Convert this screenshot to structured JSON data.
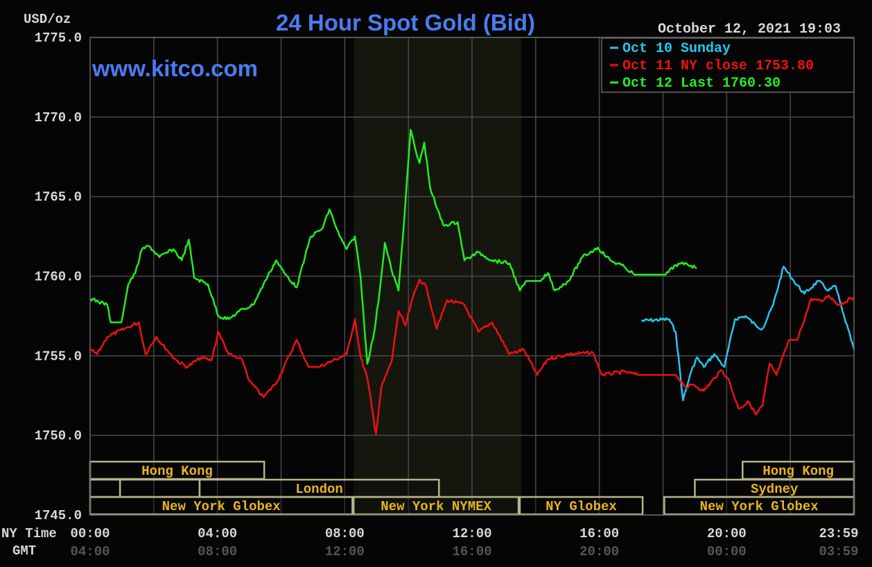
{
  "chart_data": {
    "type": "line",
    "title": "24 Hour Spot Gold (Bid)",
    "watermark": "www.kitco.com",
    "timestamp": "October 12, 2021 19:03",
    "ylabel": "USD/oz",
    "ylim": [
      1745,
      1775
    ],
    "yticks": [
      "1775.0",
      "1770.0",
      "1765.0",
      "1760.0",
      "1755.0",
      "1750.0",
      "1745.0"
    ],
    "ytick_values": [
      1775,
      1770,
      1765,
      1760,
      1755,
      1750,
      1745
    ],
    "xlim_hours": [
      0,
      24
    ],
    "x_row_labels": {
      "ny": "NY Time",
      "gmt": "GMT"
    },
    "xticks": [
      {
        "hour": 0,
        "ny": "00:00",
        "gmt": "04:00"
      },
      {
        "hour": 4,
        "ny": "04:00",
        "gmt": "08:00"
      },
      {
        "hour": 8,
        "ny": "08:00",
        "gmt": "12:00"
      },
      {
        "hour": 12,
        "ny": "12:00",
        "gmt": "16:00"
      },
      {
        "hour": 16,
        "ny": "16:00",
        "gmt": "20:00"
      },
      {
        "hour": 20,
        "ny": "20:00",
        "gmt": "00:00"
      },
      {
        "hour": 24,
        "ny": "23:59",
        "gmt": "03:59"
      }
    ],
    "grid": true,
    "legend_position": "top-right",
    "shaded_hours": [
      8.28,
      13.55
    ],
    "series": [
      {
        "name": "Oct 10 Sunday",
        "color": "#22c8f0",
        "points": [
          [
            17.32,
            1757.2
          ],
          [
            18.19,
            1757.3
          ],
          [
            18.4,
            1756.5
          ],
          [
            18.63,
            1752.2
          ],
          [
            18.85,
            1753.8
          ],
          [
            19.06,
            1754.9
          ],
          [
            19.28,
            1754.3
          ],
          [
            19.61,
            1755.1
          ],
          [
            19.93,
            1754.3
          ],
          [
            20.26,
            1757.3
          ],
          [
            20.59,
            1757.5
          ],
          [
            20.92,
            1756.9
          ],
          [
            21.13,
            1756.7
          ],
          [
            21.46,
            1758.2
          ],
          [
            21.79,
            1760.6
          ],
          [
            22.11,
            1759.7
          ],
          [
            22.44,
            1758.9
          ],
          [
            22.88,
            1759.7
          ],
          [
            23.2,
            1759.1
          ],
          [
            23.42,
            1759.4
          ],
          [
            23.64,
            1757.8
          ],
          [
            24,
            1755.4
          ]
        ]
      },
      {
        "name": "Oct 11 NY close 1753.80",
        "color": "#f01010",
        "points": [
          [
            0,
            1755.4
          ],
          [
            0.22,
            1755.1
          ],
          [
            0.54,
            1756.2
          ],
          [
            1.09,
            1756.7
          ],
          [
            1.53,
            1757.1
          ],
          [
            1.74,
            1755.1
          ],
          [
            2.07,
            1756.2
          ],
          [
            2.4,
            1755.4
          ],
          [
            2.72,
            1754.7
          ],
          [
            3.05,
            1754.3
          ],
          [
            3.49,
            1754.9
          ],
          [
            3.81,
            1754.7
          ],
          [
            4.03,
            1756.5
          ],
          [
            4.36,
            1755.1
          ],
          [
            4.79,
            1754.7
          ],
          [
            5.01,
            1753.4
          ],
          [
            5.45,
            1752.4
          ],
          [
            5.88,
            1753.4
          ],
          [
            6.49,
            1756.0
          ],
          [
            6.86,
            1754.3
          ],
          [
            7.19,
            1754.3
          ],
          [
            7.63,
            1754.7
          ],
          [
            8.06,
            1755.1
          ],
          [
            8.32,
            1757.3
          ],
          [
            8.5,
            1754.9
          ],
          [
            8.71,
            1753.6
          ],
          [
            8.98,
            1750.1
          ],
          [
            9.15,
            1753.0
          ],
          [
            9.48,
            1754.7
          ],
          [
            9.69,
            1757.8
          ],
          [
            9.91,
            1756.9
          ],
          [
            10.13,
            1758.6
          ],
          [
            10.35,
            1759.8
          ],
          [
            10.57,
            1759.3
          ],
          [
            10.89,
            1756.7
          ],
          [
            11.22,
            1758.5
          ],
          [
            11.76,
            1758.2
          ],
          [
            12.2,
            1756.5
          ],
          [
            12.63,
            1757.1
          ],
          [
            13.18,
            1755.1
          ],
          [
            13.62,
            1755.4
          ],
          [
            14.05,
            1753.8
          ],
          [
            14.38,
            1754.8
          ],
          [
            15.03,
            1755.1
          ],
          [
            15.8,
            1755.2
          ],
          [
            16.08,
            1753.8
          ],
          [
            16.78,
            1754.0
          ],
          [
            17.2,
            1753.8
          ],
          [
            18.4,
            1753.8
          ],
          [
            18.74,
            1753.0
          ],
          [
            18.95,
            1753.2
          ],
          [
            19.28,
            1752.8
          ],
          [
            19.83,
            1754.1
          ],
          [
            20.04,
            1753.6
          ],
          [
            20.37,
            1751.7
          ],
          [
            20.7,
            1752.1
          ],
          [
            20.92,
            1751.3
          ],
          [
            21.13,
            1751.9
          ],
          [
            21.35,
            1754.5
          ],
          [
            21.57,
            1753.8
          ],
          [
            21.96,
            1756.0
          ],
          [
            22.22,
            1756.0
          ],
          [
            22.66,
            1758.6
          ],
          [
            22.98,
            1758.4
          ],
          [
            23.2,
            1758.8
          ],
          [
            23.53,
            1758.2
          ],
          [
            24,
            1758.7
          ]
        ]
      },
      {
        "name": "Oct 12 Last 1760.30",
        "color": "#22ee22",
        "points": [
          [
            0,
            1758.6
          ],
          [
            0.54,
            1758.2
          ],
          [
            0.65,
            1757.1
          ],
          [
            0.98,
            1757.1
          ],
          [
            1.2,
            1759.5
          ],
          [
            1.42,
            1760.2
          ],
          [
            1.63,
            1761.7
          ],
          [
            1.85,
            1761.9
          ],
          [
            2.18,
            1761.2
          ],
          [
            2.61,
            1761.7
          ],
          [
            2.88,
            1761.0
          ],
          [
            3.1,
            1762.3
          ],
          [
            3.27,
            1759.9
          ],
          [
            3.7,
            1759.5
          ],
          [
            4.03,
            1757.5
          ],
          [
            4.36,
            1757.3
          ],
          [
            4.68,
            1757.8
          ],
          [
            5.12,
            1758.2
          ],
          [
            5.45,
            1759.5
          ],
          [
            5.84,
            1761.0
          ],
          [
            6.1,
            1760.2
          ],
          [
            6.49,
            1759.3
          ],
          [
            6.75,
            1761.2
          ],
          [
            6.93,
            1762.5
          ],
          [
            7.3,
            1763.0
          ],
          [
            7.52,
            1764.2
          ],
          [
            7.84,
            1762.5
          ],
          [
            8.06,
            1761.7
          ],
          [
            8.32,
            1762.5
          ],
          [
            8.5,
            1759.9
          ],
          [
            8.71,
            1754.5
          ],
          [
            8.93,
            1756.5
          ],
          [
            9.1,
            1759.1
          ],
          [
            9.26,
            1762.1
          ],
          [
            9.47,
            1760.4
          ],
          [
            9.69,
            1759.1
          ],
          [
            9.91,
            1764.7
          ],
          [
            10.07,
            1769.2
          ],
          [
            10.24,
            1767.8
          ],
          [
            10.35,
            1767.1
          ],
          [
            10.5,
            1768.4
          ],
          [
            10.68,
            1765.6
          ],
          [
            10.89,
            1764.3
          ],
          [
            11.1,
            1763.2
          ],
          [
            11.55,
            1763.4
          ],
          [
            11.76,
            1761.0
          ],
          [
            12.2,
            1761.5
          ],
          [
            12.63,
            1761.0
          ],
          [
            13.18,
            1760.8
          ],
          [
            13.5,
            1759.1
          ],
          [
            13.73,
            1759.7
          ],
          [
            14.16,
            1759.7
          ],
          [
            14.38,
            1760.2
          ],
          [
            14.6,
            1759.1
          ],
          [
            15.03,
            1759.7
          ],
          [
            15.47,
            1761.2
          ],
          [
            15.95,
            1761.8
          ],
          [
            16.34,
            1761.0
          ],
          [
            16.78,
            1760.6
          ],
          [
            17.1,
            1760.1
          ],
          [
            18.08,
            1760.1
          ],
          [
            18.4,
            1760.7
          ],
          [
            18.74,
            1760.8
          ],
          [
            19.06,
            1760.5
          ]
        ]
      }
    ],
    "sessions": [
      {
        "label": "Hong Kong",
        "row": 0,
        "start": 0,
        "end": 5.47,
        "show": true
      },
      {
        "label": "Hong Kong",
        "row": 0,
        "start": 20.5,
        "end": 24,
        "show": true
      },
      {
        "label": "",
        "row": 1,
        "start": 0,
        "end": 0.94,
        "show": false
      },
      {
        "label": "",
        "row": 1,
        "start": 0.94,
        "end": 3.44,
        "show": false
      },
      {
        "label": "London",
        "row": 1,
        "start": 3.44,
        "end": 10.96,
        "show": true
      },
      {
        "label": "Sydney",
        "row": 1,
        "start": 19.0,
        "end": 24,
        "show": true
      },
      {
        "label": "New York Globex",
        "row": 2,
        "start": 0,
        "end": 8.24,
        "show": true
      },
      {
        "label": "New York NYMEX",
        "row": 2,
        "start": 8.28,
        "end": 13.46,
        "show": true
      },
      {
        "label": "NY Globex",
        "row": 2,
        "start": 13.5,
        "end": 17.36,
        "show": true
      },
      {
        "label": "New York Globex",
        "row": 2,
        "start": 18.04,
        "end": 24,
        "show": true
      }
    ]
  }
}
